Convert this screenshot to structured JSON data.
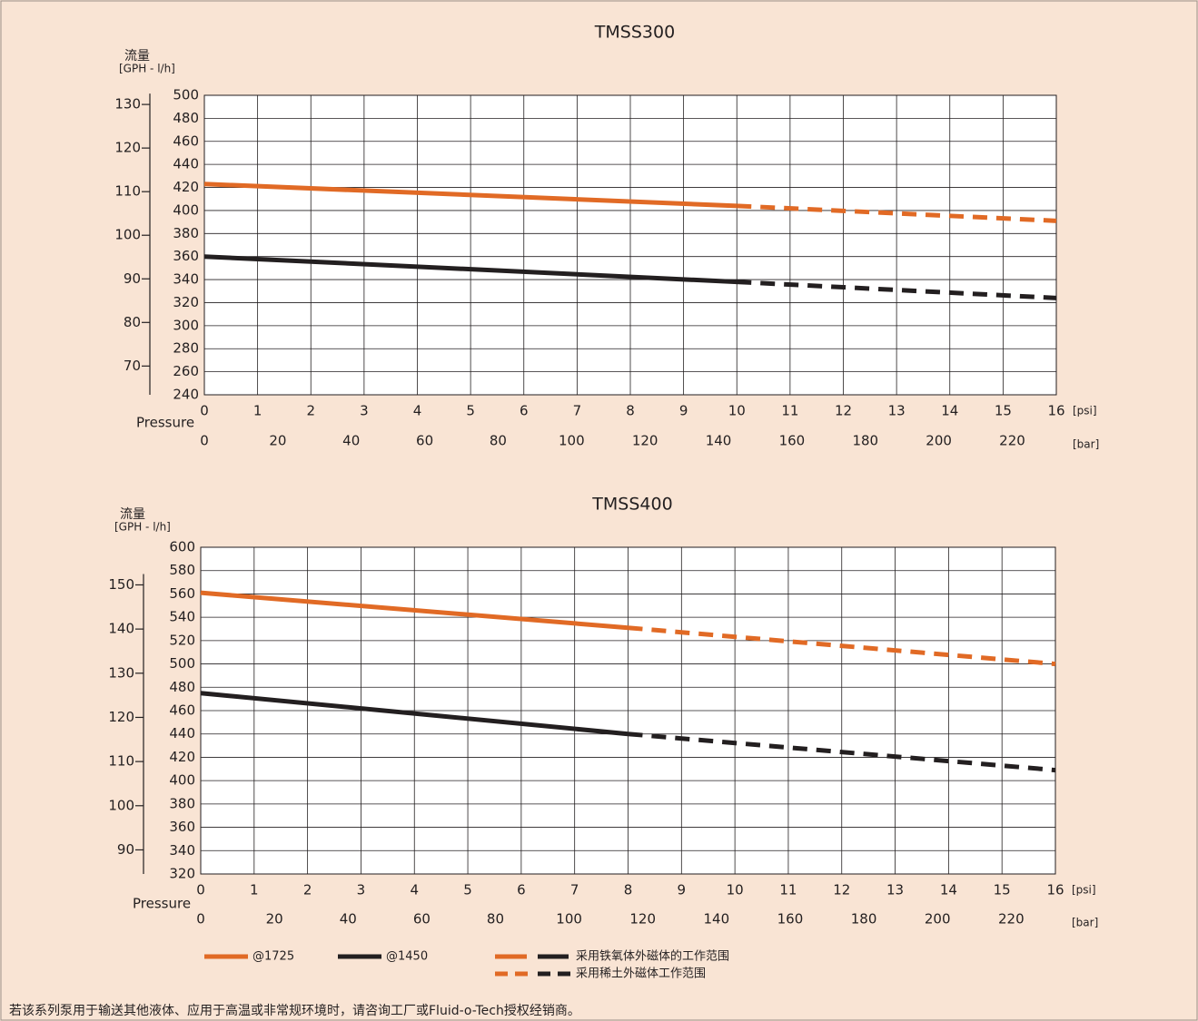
{
  "colors": {
    "background": "#f9e4d4",
    "orange": "#e16a25",
    "black": "#231f20",
    "grid": "#231f20",
    "plot_bg": "#ffffff"
  },
  "legend": {
    "items": [
      {
        "label": "@1725",
        "color": "#e16a25"
      },
      {
        "label": "@1450",
        "color": "#231f20"
      }
    ],
    "solid_label": "采用铁氧体外磁体的工作范围",
    "dashed_label": "采用稀土外磁体工作范围"
  },
  "footnote": "若该系列泵用于输送其他液体、应用于高温或非常规环境时，请咨询工厂或Fluid-o-Tech授权经销商。",
  "chart_data": [
    {
      "type": "line",
      "title": "TMSS300",
      "ylabel": "流量",
      "ylabel_unit": "[GPH - l/h]",
      "xlabel": "Pressure",
      "x_ticks": [
        0,
        1,
        2,
        3,
        4,
        5,
        6,
        7,
        8,
        9,
        10,
        11,
        12,
        13,
        14,
        15,
        16
      ],
      "x_unit": "[psi]",
      "x_secondary_ticks": [
        0,
        20,
        40,
        60,
        80,
        100,
        120,
        140,
        160,
        180,
        200,
        220
      ],
      "x_secondary_unit": "[bar]",
      "x_secondary_per_primary": 14.5,
      "xlim": [
        0,
        16
      ],
      "ylim": [
        240,
        500
      ],
      "y_ticks": [
        240,
        260,
        280,
        300,
        320,
        340,
        360,
        380,
        400,
        420,
        440,
        460,
        480,
        500
      ],
      "y_secondary_ticks": [
        70,
        80,
        90,
        100,
        110,
        120,
        130
      ],
      "y_secondary_factor": 3.785,
      "grid": true,
      "series": [
        {
          "name": "@1725",
          "color": "#e16a25",
          "solid_x": [
            0,
            10
          ],
          "solid_y": [
            423,
            404
          ],
          "dashed_x": [
            10,
            16
          ],
          "dashed_y": [
            404,
            391
          ]
        },
        {
          "name": "@1450",
          "color": "#231f20",
          "solid_x": [
            0,
            10
          ],
          "solid_y": [
            360,
            338
          ],
          "dashed_x": [
            10,
            16
          ],
          "dashed_y": [
            338,
            324
          ]
        }
      ]
    },
    {
      "type": "line",
      "title": "TMSS400",
      "ylabel": "流量",
      "ylabel_unit": "[GPH - l/h]",
      "xlabel": "Pressure",
      "x_ticks": [
        0,
        1,
        2,
        3,
        4,
        5,
        6,
        7,
        8,
        9,
        10,
        11,
        12,
        13,
        14,
        15,
        16
      ],
      "x_unit": "[psi]",
      "x_secondary_ticks": [
        0,
        20,
        40,
        60,
        80,
        100,
        120,
        140,
        160,
        180,
        200,
        220
      ],
      "x_secondary_unit": "[bar]",
      "x_secondary_per_primary": 14.5,
      "xlim": [
        0,
        16
      ],
      "ylim": [
        320,
        600
      ],
      "y_ticks": [
        320,
        340,
        360,
        380,
        400,
        420,
        440,
        460,
        480,
        500,
        520,
        540,
        560,
        580,
        600
      ],
      "y_secondary_ticks": [
        90,
        100,
        110,
        120,
        130,
        140,
        150
      ],
      "y_secondary_factor": 3.785,
      "grid": true,
      "series": [
        {
          "name": "@1725",
          "color": "#e16a25",
          "solid_x": [
            0,
            8
          ],
          "solid_y": [
            561,
            531
          ],
          "dashed_x": [
            8,
            16
          ],
          "dashed_y": [
            531,
            500
          ]
        },
        {
          "name": "@1450",
          "color": "#231f20",
          "solid_x": [
            0,
            8
          ],
          "solid_y": [
            475,
            440
          ],
          "dashed_x": [
            8,
            16
          ],
          "dashed_y": [
            440,
            409
          ]
        }
      ]
    }
  ]
}
